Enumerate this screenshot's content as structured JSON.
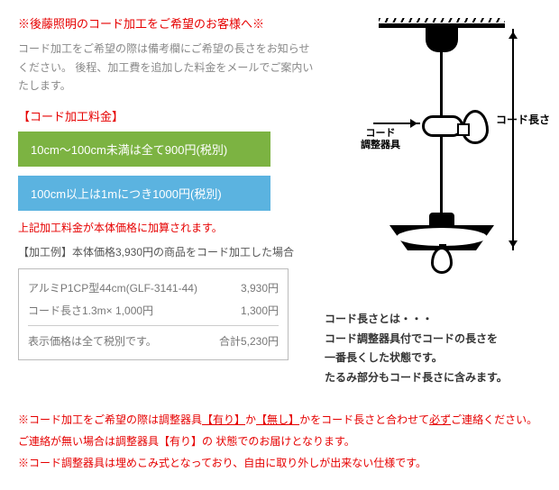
{
  "title": "※後藤照明のコード加工をご希望のお客様へ※",
  "lead": "コード加工をご希望の際は備考欄にご希望の長さをお知らせください。 後程、加工費を追加した料金をメールでご案内いたします。",
  "fee_heading": "【コード加工料金】",
  "fee1": "10cm～100cm未満は全て900円(税別)",
  "fee2": "100cm以上は1mにつき1000円(税別)",
  "add_note": "上記加工料金が本体価格に加算されます。",
  "example_heading": "【加工例】本体価格3,930円の商品をコード加工した場合",
  "rows": [
    {
      "label": "アルミP1CP型44cm(GLF-3141-44)",
      "price": "3,930円"
    },
    {
      "label": "コード長さ1.3m× 1,000円",
      "price": "1,300円"
    }
  ],
  "total_label": "表示価格は全て税別です。",
  "total_price": "合計5,230円",
  "diagram": {
    "length_label": "コード長さ",
    "adjuster_label_l1": "コード",
    "adjuster_label_l2": "調整器具"
  },
  "desc_lines": [
    "コード長さとは・・・",
    "コード調整器具付でコードの長さを",
    "一番長くした状態です。",
    "たるみ部分もコード長さに含みます。"
  ],
  "footer": {
    "l1_a": "※コード加工をご希望の際は調整器具",
    "l1_u1": "【有り】",
    "l1_b": "か",
    "l1_u2": "【無し】",
    "l1_c": "かをコード長さと合わせて",
    "l1_u3": "必ず",
    "l1_d": "ご連絡ください。",
    "l2": "ご連絡が無い場合は調整器具【有り】の 状態でのお届けとなります。",
    "l3": "※コード調整器具は埋めこみ式となっており、自由に取り外しが出来ない仕様です。"
  },
  "colors": {
    "red": "#e60000",
    "green": "#7cb342",
    "blue": "#5bb3e0",
    "grey_text": "#888888",
    "border": "#bbbbbb"
  }
}
